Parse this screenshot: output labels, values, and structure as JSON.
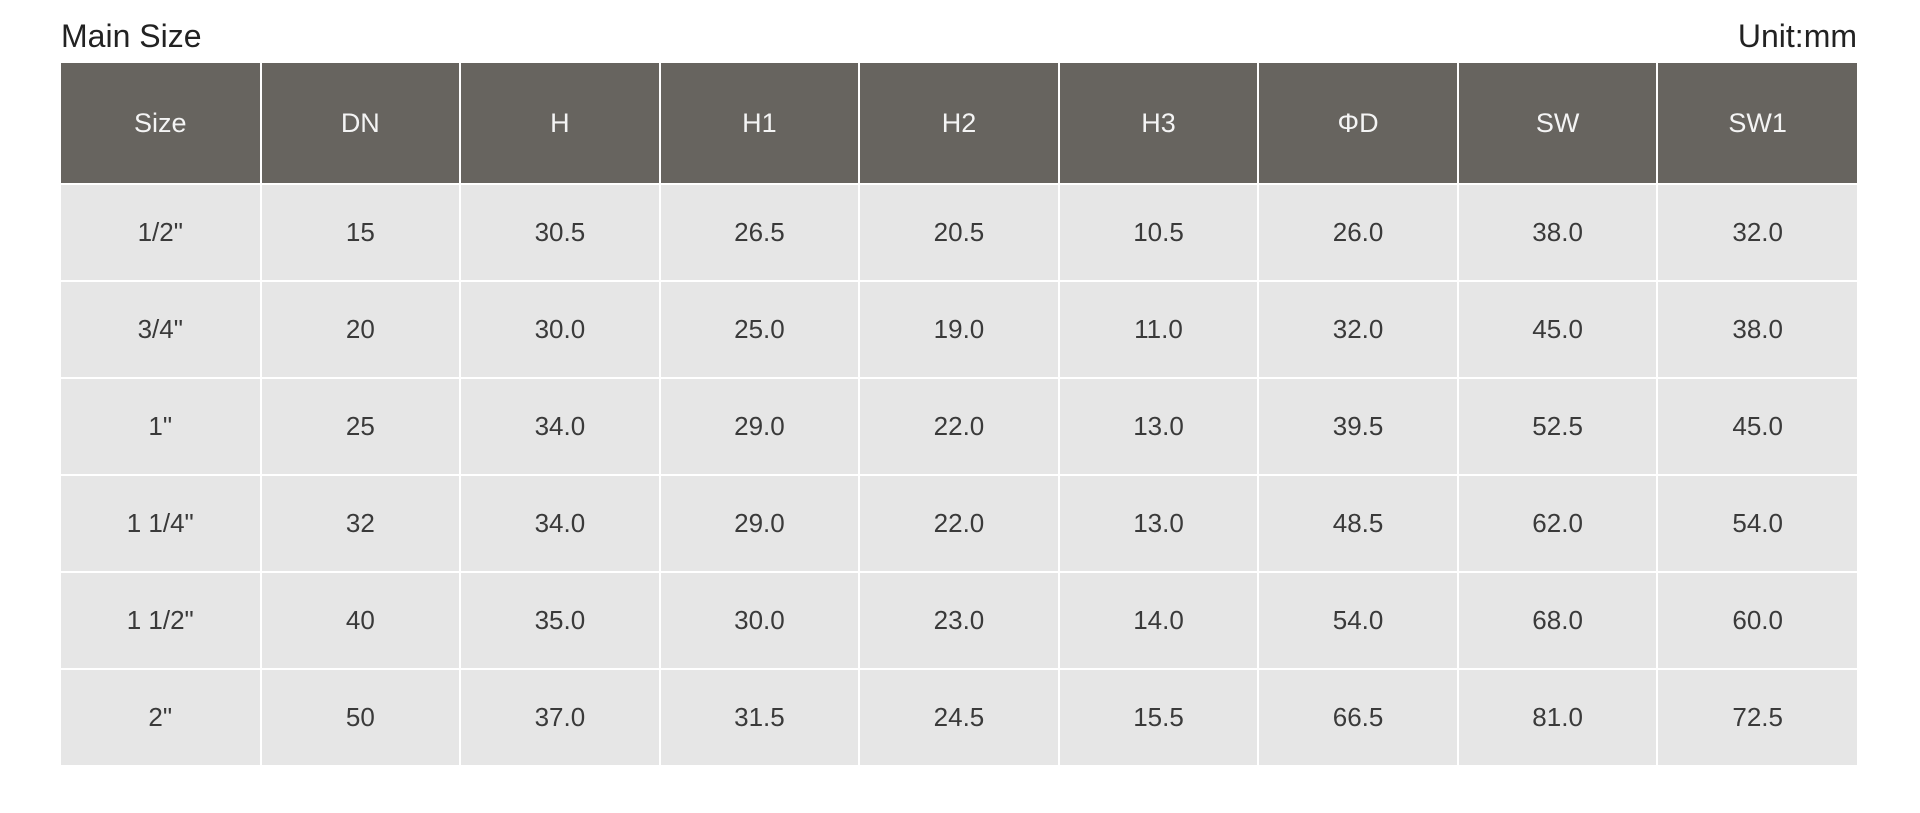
{
  "header": {
    "title": "Main Size",
    "unit": "Unit:mm"
  },
  "table": {
    "header": [
      "Size",
      "DN",
      "H",
      "H1",
      "H2",
      "H3",
      "ΦD",
      "SW",
      "SW1"
    ],
    "rows": [
      [
        "1/2\"",
        "15",
        "30.5",
        "26.5",
        "20.5",
        "10.5",
        "26.0",
        "38.0",
        "32.0"
      ],
      [
        "3/4\"",
        "20",
        "30.0",
        "25.0",
        "19.0",
        "11.0",
        "32.0",
        "45.0",
        "38.0"
      ],
      [
        "1\"",
        "25",
        "34.0",
        "29.0",
        "22.0",
        "13.0",
        "39.5",
        "52.5",
        "45.0"
      ],
      [
        "1 1/4\"",
        "32",
        "34.0",
        "29.0",
        "22.0",
        "13.0",
        "48.5",
        "62.0",
        "54.0"
      ],
      [
        "1 1/2\"",
        "40",
        "35.0",
        "30.0",
        "23.0",
        "14.0",
        "54.0",
        "68.0",
        "60.0"
      ],
      [
        "2\"",
        "50",
        "37.0",
        "31.5",
        "24.5",
        "15.5",
        "66.5",
        "81.0",
        "72.5"
      ]
    ]
  }
}
